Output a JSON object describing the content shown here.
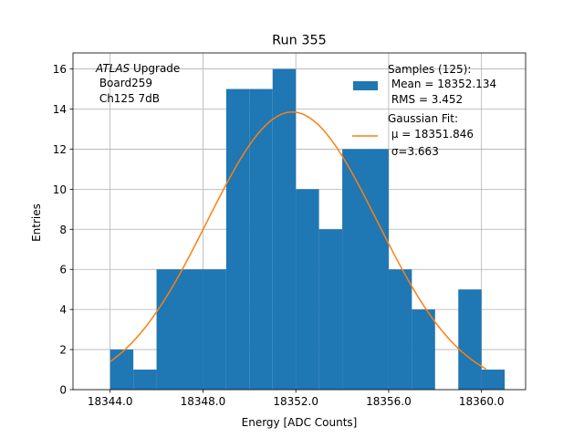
{
  "chart_data": {
    "type": "bar",
    "title": "Run 355",
    "xlabel": "Energy [ADC Counts]",
    "ylabel": "Entries",
    "xlim": [
      18342.4,
      18361.9
    ],
    "ylim": [
      0,
      16.8
    ],
    "grid": true,
    "x_ticks": [
      18344.0,
      18348.0,
      18352.0,
      18356.0,
      18360.0
    ],
    "x_tick_labels": [
      "18344.0",
      "18348.0",
      "18352.0",
      "18356.0",
      "18360.0"
    ],
    "y_ticks": [
      0,
      2,
      4,
      6,
      8,
      10,
      12,
      14,
      16
    ],
    "y_tick_labels": [
      "0",
      "2",
      "4",
      "6",
      "8",
      "10",
      "12",
      "14",
      "16"
    ],
    "histogram": {
      "bin_edges": [
        18344,
        18345,
        18346,
        18347,
        18348,
        18349,
        18350,
        18351,
        18352,
        18353,
        18354,
        18355,
        18356,
        18357,
        18358,
        18359,
        18360,
        18361
      ],
      "counts": [
        2,
        1,
        6,
        6,
        6,
        15,
        15,
        16,
        10,
        8,
        12,
        12,
        6,
        4,
        0,
        5,
        1
      ],
      "color": "#1f77b4"
    },
    "fit": {
      "type": "gaussian",
      "amplitude": 13.85,
      "mu": 18351.846,
      "sigma": 3.663,
      "x_range": [
        18344.0,
        18360.2
      ],
      "color": "#ff7f0e"
    },
    "annotation": {
      "italic": "ATLAS",
      "line1_rest": " Upgrade",
      "line2": " Board259",
      "line3": " Ch125 7dB"
    },
    "legend": {
      "placement": "upper right",
      "entries": [
        {
          "lines": [
            "Samples (125):",
            " Mean = 18352.134",
            " RMS = 3.452"
          ]
        },
        {
          "lines": [
            "Gaussian Fit:",
            " μ = 18351.846",
            " σ=3.663"
          ]
        }
      ]
    }
  }
}
